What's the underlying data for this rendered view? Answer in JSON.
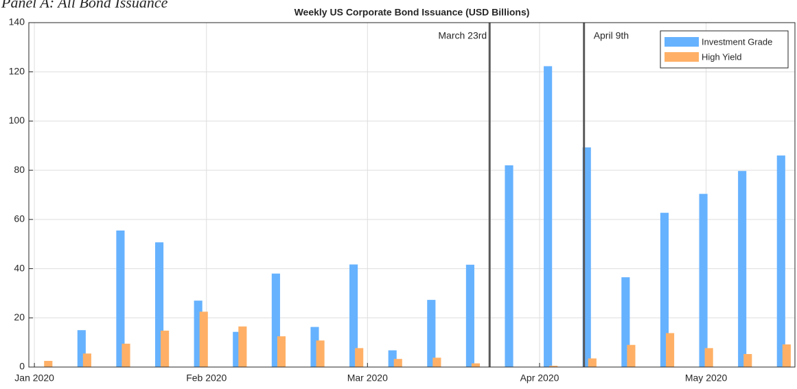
{
  "panel_label": "Panel A: All Bond Issuance",
  "chart_data": {
    "type": "bar",
    "title": "Weekly US Corporate Bond Issuance (USD Billions)",
    "x": [
      2,
      9,
      16,
      23,
      30,
      37,
      44,
      51,
      58,
      65,
      72,
      79,
      86,
      93,
      100,
      107,
      114,
      121,
      128,
      135
    ],
    "series": [
      {
        "name": "Investment Grade",
        "color": "#66b2ff",
        "values": [
          0,
          15,
          55.5,
          50.7,
          27,
          14.3,
          38,
          16.3,
          41.7,
          6.8,
          27.3,
          41.6,
          82,
          122.3,
          89.3,
          36.5,
          62.7,
          70.4,
          79.7,
          86
        ]
      },
      {
        "name": "High Yield",
        "color": "#ffb066",
        "values": [
          2.5,
          5.5,
          9.5,
          14.8,
          22.5,
          16.5,
          12.5,
          10.8,
          7.7,
          3.3,
          3.8,
          1.5,
          0,
          0.5,
          3.5,
          9,
          13.8,
          7.7,
          5.3,
          9.2
        ]
      }
    ],
    "xlim": [
      -1,
      137
    ],
    "xticks": [
      {
        "value": 0,
        "label": "Jan 2020"
      },
      {
        "value": 31,
        "label": "Feb 2020"
      },
      {
        "value": 60,
        "label": "Mar 2020"
      },
      {
        "value": 91,
        "label": "Apr 2020"
      },
      {
        "value": 121,
        "label": "May 2020"
      }
    ],
    "ylim": [
      0,
      140
    ],
    "yticks": [
      0,
      20,
      40,
      60,
      80,
      100,
      120,
      140
    ],
    "grid": true,
    "legend": "northeast",
    "annotations": [
      {
        "x": 82,
        "text": "March 23rd"
      },
      {
        "x": 99,
        "text": "April 9th"
      }
    ]
  }
}
